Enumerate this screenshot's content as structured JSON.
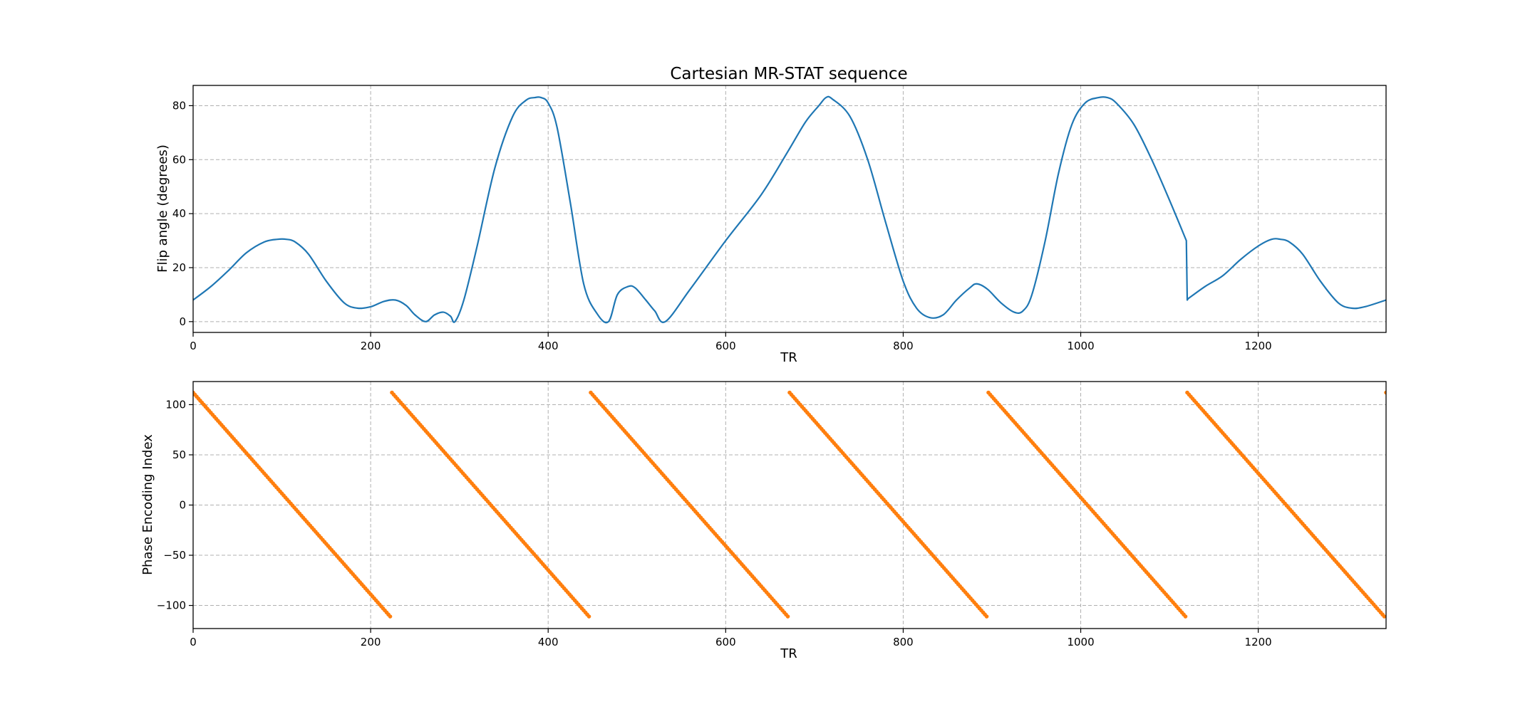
{
  "chart_data": [
    {
      "type": "line",
      "title": "Cartesian MR-STAT sequence",
      "xlabel": "TR",
      "ylabel": "Flip angle (degrees)",
      "xlim": [
        0,
        1344
      ],
      "ylim": [
        -4,
        87.5
      ],
      "xticks": [
        0,
        200,
        400,
        600,
        800,
        1000,
        1200
      ],
      "yticks": [
        0,
        20,
        40,
        60,
        80
      ],
      "grid": true,
      "series": [
        {
          "color": "#1f77b4",
          "x": [
            0,
            20,
            40,
            60,
            80,
            95,
            105,
            115,
            130,
            150,
            170,
            185,
            200,
            215,
            228,
            240,
            250,
            262,
            272,
            282,
            290,
            295,
            305,
            320,
            340,
            360,
            375,
            385,
            392,
            400,
            410,
            425,
            440,
            455,
            468,
            478,
            490,
            498,
            510,
            520,
            532,
            560,
            600,
            640,
            670,
            690,
            705,
            713,
            720,
            740,
            760,
            780,
            800,
            815,
            830,
            845,
            860,
            875,
            883,
            895,
            910,
            925,
            935,
            945,
            960,
            975,
            990,
            1005,
            1020,
            1030,
            1040,
            1060,
            1080,
            1100,
            1119,
            1120,
            1121,
            1140,
            1160,
            1180,
            1200,
            1215,
            1225,
            1235,
            1250,
            1270,
            1290,
            1305,
            1320,
            1344
          ],
          "y": [
            8,
            13,
            19,
            25.5,
            29.5,
            30.5,
            30.5,
            29.5,
            25,
            15,
            7,
            5,
            5.5,
            7.5,
            8,
            6,
            2.5,
            0,
            2.5,
            3.5,
            2,
            0,
            8,
            28,
            57,
            76,
            82,
            83,
            83,
            81,
            72,
            44,
            14,
            3,
            0,
            10,
            13,
            12.5,
            8,
            4,
            0,
            12,
            30,
            47,
            63,
            74,
            80,
            83,
            82.5,
            76,
            60,
            37,
            15,
            5,
            1.5,
            2.5,
            8,
            12.5,
            14,
            12,
            7,
            3.5,
            4,
            10,
            30,
            55,
            73,
            81,
            83,
            83,
            81,
            73,
            60,
            45,
            30,
            8,
            8.5,
            13,
            17,
            23,
            28,
            30.5,
            30.5,
            29.5,
            25,
            15,
            7,
            5,
            5.5,
            8
          ]
        }
      ]
    },
    {
      "type": "scatter",
      "xlabel": "TR",
      "ylabel": "Phase Encoding Index",
      "xlim": [
        0,
        1344
      ],
      "ylim": [
        -123,
        123
      ],
      "xticks": [
        0,
        200,
        400,
        600,
        800,
        1000,
        1200
      ],
      "yticks": [
        -100,
        -50,
        0,
        50,
        100
      ],
      "grid": true,
      "series": [
        {
          "color": "#ff7f0e",
          "x_start": 0,
          "x_end": 1344,
          "period": 224,
          "y_start": 112,
          "y_end": -112
        }
      ]
    }
  ]
}
